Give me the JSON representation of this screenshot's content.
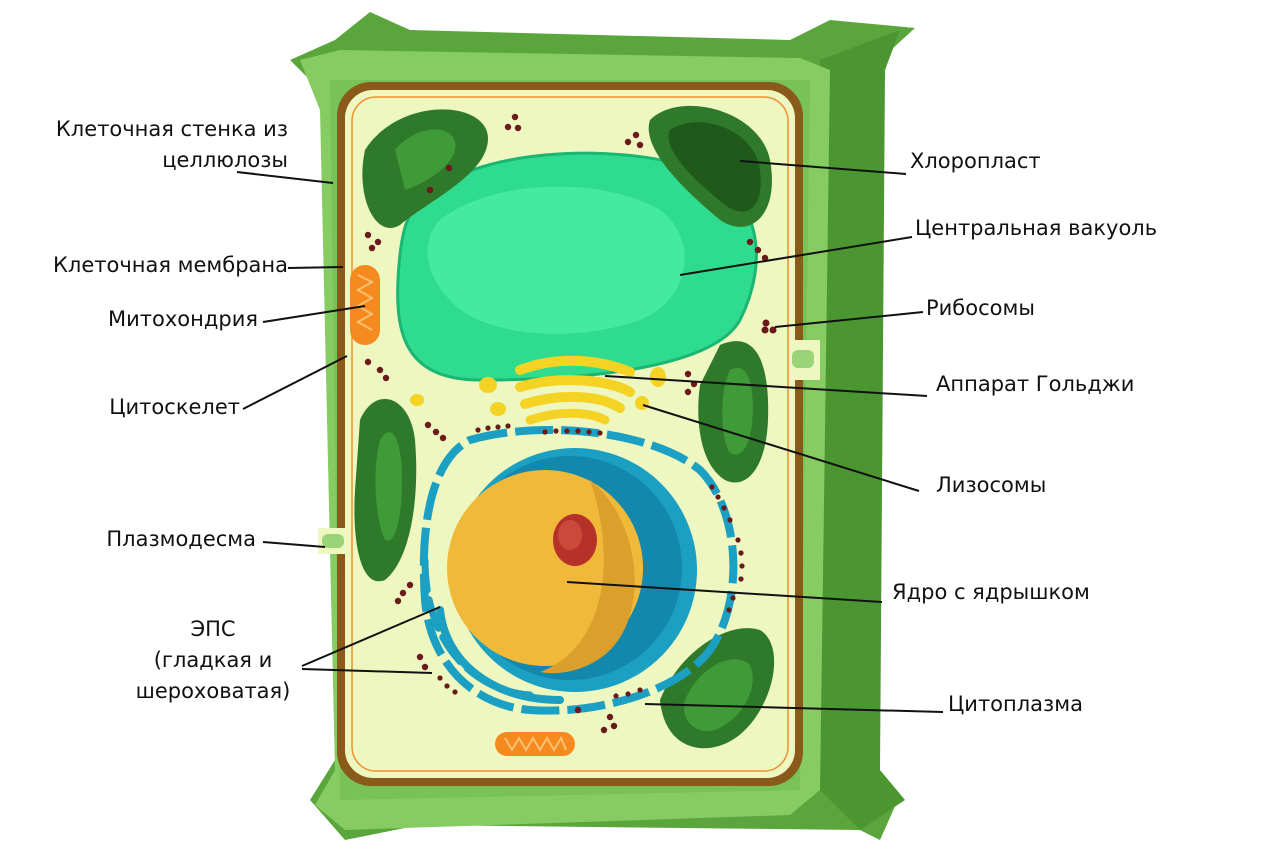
{
  "labels": {
    "cell_wall": [
      "Клеточная стенка из",
      "целлюлозы"
    ],
    "membrane": "Клеточная мембрана",
    "mitochondria": "Митохондрия",
    "cytoskeleton": "Цитоскелет",
    "plasmodesma": "Плазмодесма",
    "er": [
      "ЭПС",
      "(гладкая и",
      "шероховатая)"
    ],
    "chloroplast": "Хлоропласт",
    "vacuole": "Центральная вакуоль",
    "ribosomes": "Рибосомы",
    "golgi": "Аппарат Гольджи",
    "lysosomes": "Лизосомы",
    "nucleus": "Ядро с ядрышком",
    "cytoplasm": "Цитоплазма"
  },
  "colors": {
    "wall_light": "#8fd06a",
    "wall_dark": "#5aa63c",
    "membrane_brown": "#8a5a1a",
    "cytoplasm": "#eef7c0",
    "vacuole": "#2fdc8f",
    "chloroplast": "#3a8a32",
    "nucleus_outer": "#1b9fc3",
    "nucleus_inner": "#f0b93a",
    "nucleolus": "#b5312a",
    "golgi": "#f5d324",
    "mitochondria": "#f58a1e",
    "ribosome": "#6a1a1a"
  }
}
